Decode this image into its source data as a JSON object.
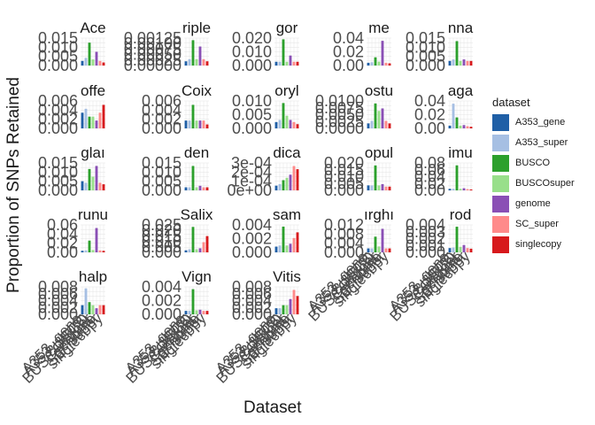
{
  "chart_data": {
    "type": "bar",
    "xlabel": "Dataset",
    "ylabel": "Proportion of SNPs Retained",
    "legend_title": "dataset",
    "legend_position": "right",
    "grid": true,
    "categories": [
      "A353_gene",
      "A353_super",
      "BUSCO",
      "BUSCOsuper",
      "genome",
      "SC_super",
      "singlecopy"
    ],
    "colors": [
      "#1f5fa6",
      "#a6bfe3",
      "#2ca02c",
      "#98df8a",
      "#8a4fb5",
      "#ff8a8a",
      "#d7191c"
    ],
    "panels": [
      {
        "title": "Ace",
        "yticks": [
          "0.000",
          "0.005",
          "0.010",
          "0.015"
        ],
        "ymax": 0.018,
        "values": [
          0.003,
          0.005,
          0.015,
          0.004,
          0.009,
          0.003,
          0.002
        ]
      },
      {
        "title": "riple",
        "yticks": [
          "0.00000",
          "0.00025",
          "0.00050",
          "0.00075",
          "0.00100",
          "0.00125"
        ],
        "ymax": 0.0013,
        "values": [
          0.0002,
          0.0003,
          0.0012,
          0.0003,
          0.0009,
          0.0003,
          0.0002
        ]
      },
      {
        "title": "gor",
        "yticks": [
          "0.000",
          "0.010",
          "0.020"
        ],
        "ymax": 0.022,
        "values": [
          0.003,
          0.003,
          0.021,
          0.003,
          0.008,
          0.003,
          0.003
        ]
      },
      {
        "title": "me",
        "yticks": [
          "0.00",
          "0.02",
          "0.04"
        ],
        "ymax": 0.05,
        "values": [
          0.005,
          0.006,
          0.015,
          0.007,
          0.045,
          0.005,
          0.004
        ]
      },
      {
        "title": "nna",
        "yticks": [
          "0.000",
          "0.005",
          "0.010",
          "0.015"
        ],
        "ymax": 0.018,
        "values": [
          0.003,
          0.004,
          0.016,
          0.003,
          0.004,
          0.003,
          0.003
        ]
      },
      {
        "title": "offe",
        "yticks": [
          "0.000",
          "0.002",
          "0.004",
          "0.006"
        ],
        "ymax": 0.007,
        "values": [
          0.004,
          0.005,
          0.003,
          0.003,
          0.002,
          0.004,
          0.006
        ]
      },
      {
        "title": "Coix",
        "yticks": [
          "0.000",
          "0.002",
          "0.004",
          "0.006"
        ],
        "ymax": 0.007,
        "values": [
          0.002,
          0.002,
          0.006,
          0.002,
          0.002,
          0.002,
          0.001
        ]
      },
      {
        "title": "oryl",
        "yticks": [
          "0.000",
          "0.005",
          "0.010"
        ],
        "ymax": 0.013,
        "values": [
          0.003,
          0.004,
          0.012,
          0.006,
          0.004,
          0.003,
          0.002
        ]
      },
      {
        "title": "ostu",
        "yticks": [
          "0.0000",
          "0.0025",
          "0.0050",
          "0.0075",
          "0.0100"
        ],
        "ymax": 0.011,
        "values": [
          0.002,
          0.003,
          0.01,
          0.007,
          0.008,
          0.003,
          0.002
        ]
      },
      {
        "title": "aga",
        "yticks": [
          "0.00",
          "0.02",
          "0.04"
        ],
        "ymax": 0.05,
        "values": [
          0.005,
          0.045,
          0.02,
          0.005,
          0.006,
          0.004,
          0.003
        ]
      },
      {
        "title": "glaı",
        "yticks": [
          "0.000",
          "0.005",
          "0.010",
          "0.015"
        ],
        "ymax": 0.018,
        "values": [
          0.006,
          0.005,
          0.014,
          0.009,
          0.016,
          0.005,
          0.004
        ]
      },
      {
        "title": "den",
        "yticks": [
          "0.000",
          "0.005",
          "0.010",
          "0.015"
        ],
        "ymax": 0.018,
        "values": [
          0.002,
          0.002,
          0.016,
          0.002,
          0.003,
          0.002,
          0.002
        ]
      },
      {
        "title": "dica",
        "yticks": [
          "0e+00",
          "1e-04",
          "2e-04",
          "3e-04"
        ],
        "ymax": 0.00035,
        "values": [
          6e-05,
          8e-05,
          0.00013,
          0.00016,
          0.0002,
          0.00031,
          0.00027
        ]
      },
      {
        "title": "opul",
        "yticks": [
          "0.000",
          "0.005",
          "0.010",
          "0.015",
          "0.020"
        ],
        "ymax": 0.022,
        "values": [
          0.004,
          0.004,
          0.02,
          0.004,
          0.005,
          0.003,
          0.003
        ]
      },
      {
        "title": "imu",
        "yticks": [
          "0.00",
          "0.02",
          "0.04",
          "0.06",
          "0.08"
        ],
        "ymax": 0.09,
        "values": [
          0.005,
          0.005,
          0.082,
          0.005,
          0.007,
          0.004,
          0.003
        ]
      },
      {
        "title": "runu",
        "yticks": [
          "0.00",
          "0.02",
          "0.04",
          "0.06"
        ],
        "ymax": 0.07,
        "values": [
          0.004,
          0.005,
          0.03,
          0.006,
          0.062,
          0.005,
          0.004
        ]
      },
      {
        "title": "Salix",
        "yticks": [
          "0.000",
          "0.005",
          "0.010",
          "0.015",
          "0.020",
          "0.025"
        ],
        "ymax": 0.027,
        "values": [
          0.002,
          0.003,
          0.025,
          0.003,
          0.004,
          0.01,
          0.016
        ]
      },
      {
        "title": "sam",
        "yticks": [
          "0.000",
          "0.002",
          "0.004"
        ],
        "ymax": 0.0048,
        "values": [
          0.001,
          0.0012,
          0.0045,
          0.0012,
          0.0015,
          0.0025,
          0.0035
        ]
      },
      {
        "title": "ırghı",
        "yticks": [
          "0.000",
          "0.004",
          "0.008",
          "0.012"
        ],
        "ymax": 0.014,
        "values": [
          0.002,
          0.002,
          0.008,
          0.003,
          0.012,
          0.002,
          0.002
        ]
      },
      {
        "title": "rod",
        "yticks": [
          "0.000",
          "0.001",
          "0.002",
          "0.003",
          "0.004"
        ],
        "ymax": 0.0045,
        "values": [
          0.0007,
          0.0008,
          0.0042,
          0.0009,
          0.0012,
          0.0007,
          0.0006
        ]
      },
      {
        "title": "halp",
        "yticks": [
          "0.000",
          "0.002",
          "0.004",
          "0.006",
          "0.008"
        ],
        "ymax": 0.009,
        "values": [
          0.003,
          0.0085,
          0.004,
          0.003,
          0.002,
          0.003,
          0.003
        ]
      },
      {
        "title": "Vign",
        "yticks": [
          "0.000",
          "0.002",
          "0.004"
        ],
        "ymax": 0.0048,
        "values": [
          0.0006,
          0.0006,
          0.0044,
          0.0007,
          0.0008,
          0.0006,
          0.0006
        ]
      },
      {
        "title": "Vitis",
        "yticks": [
          "0.000",
          "0.002",
          "0.004",
          "0.006",
          "0.008"
        ],
        "ymax": 0.009,
        "values": [
          0.002,
          0.002,
          0.003,
          0.003,
          0.005,
          0.008,
          0.006
        ]
      }
    ]
  }
}
